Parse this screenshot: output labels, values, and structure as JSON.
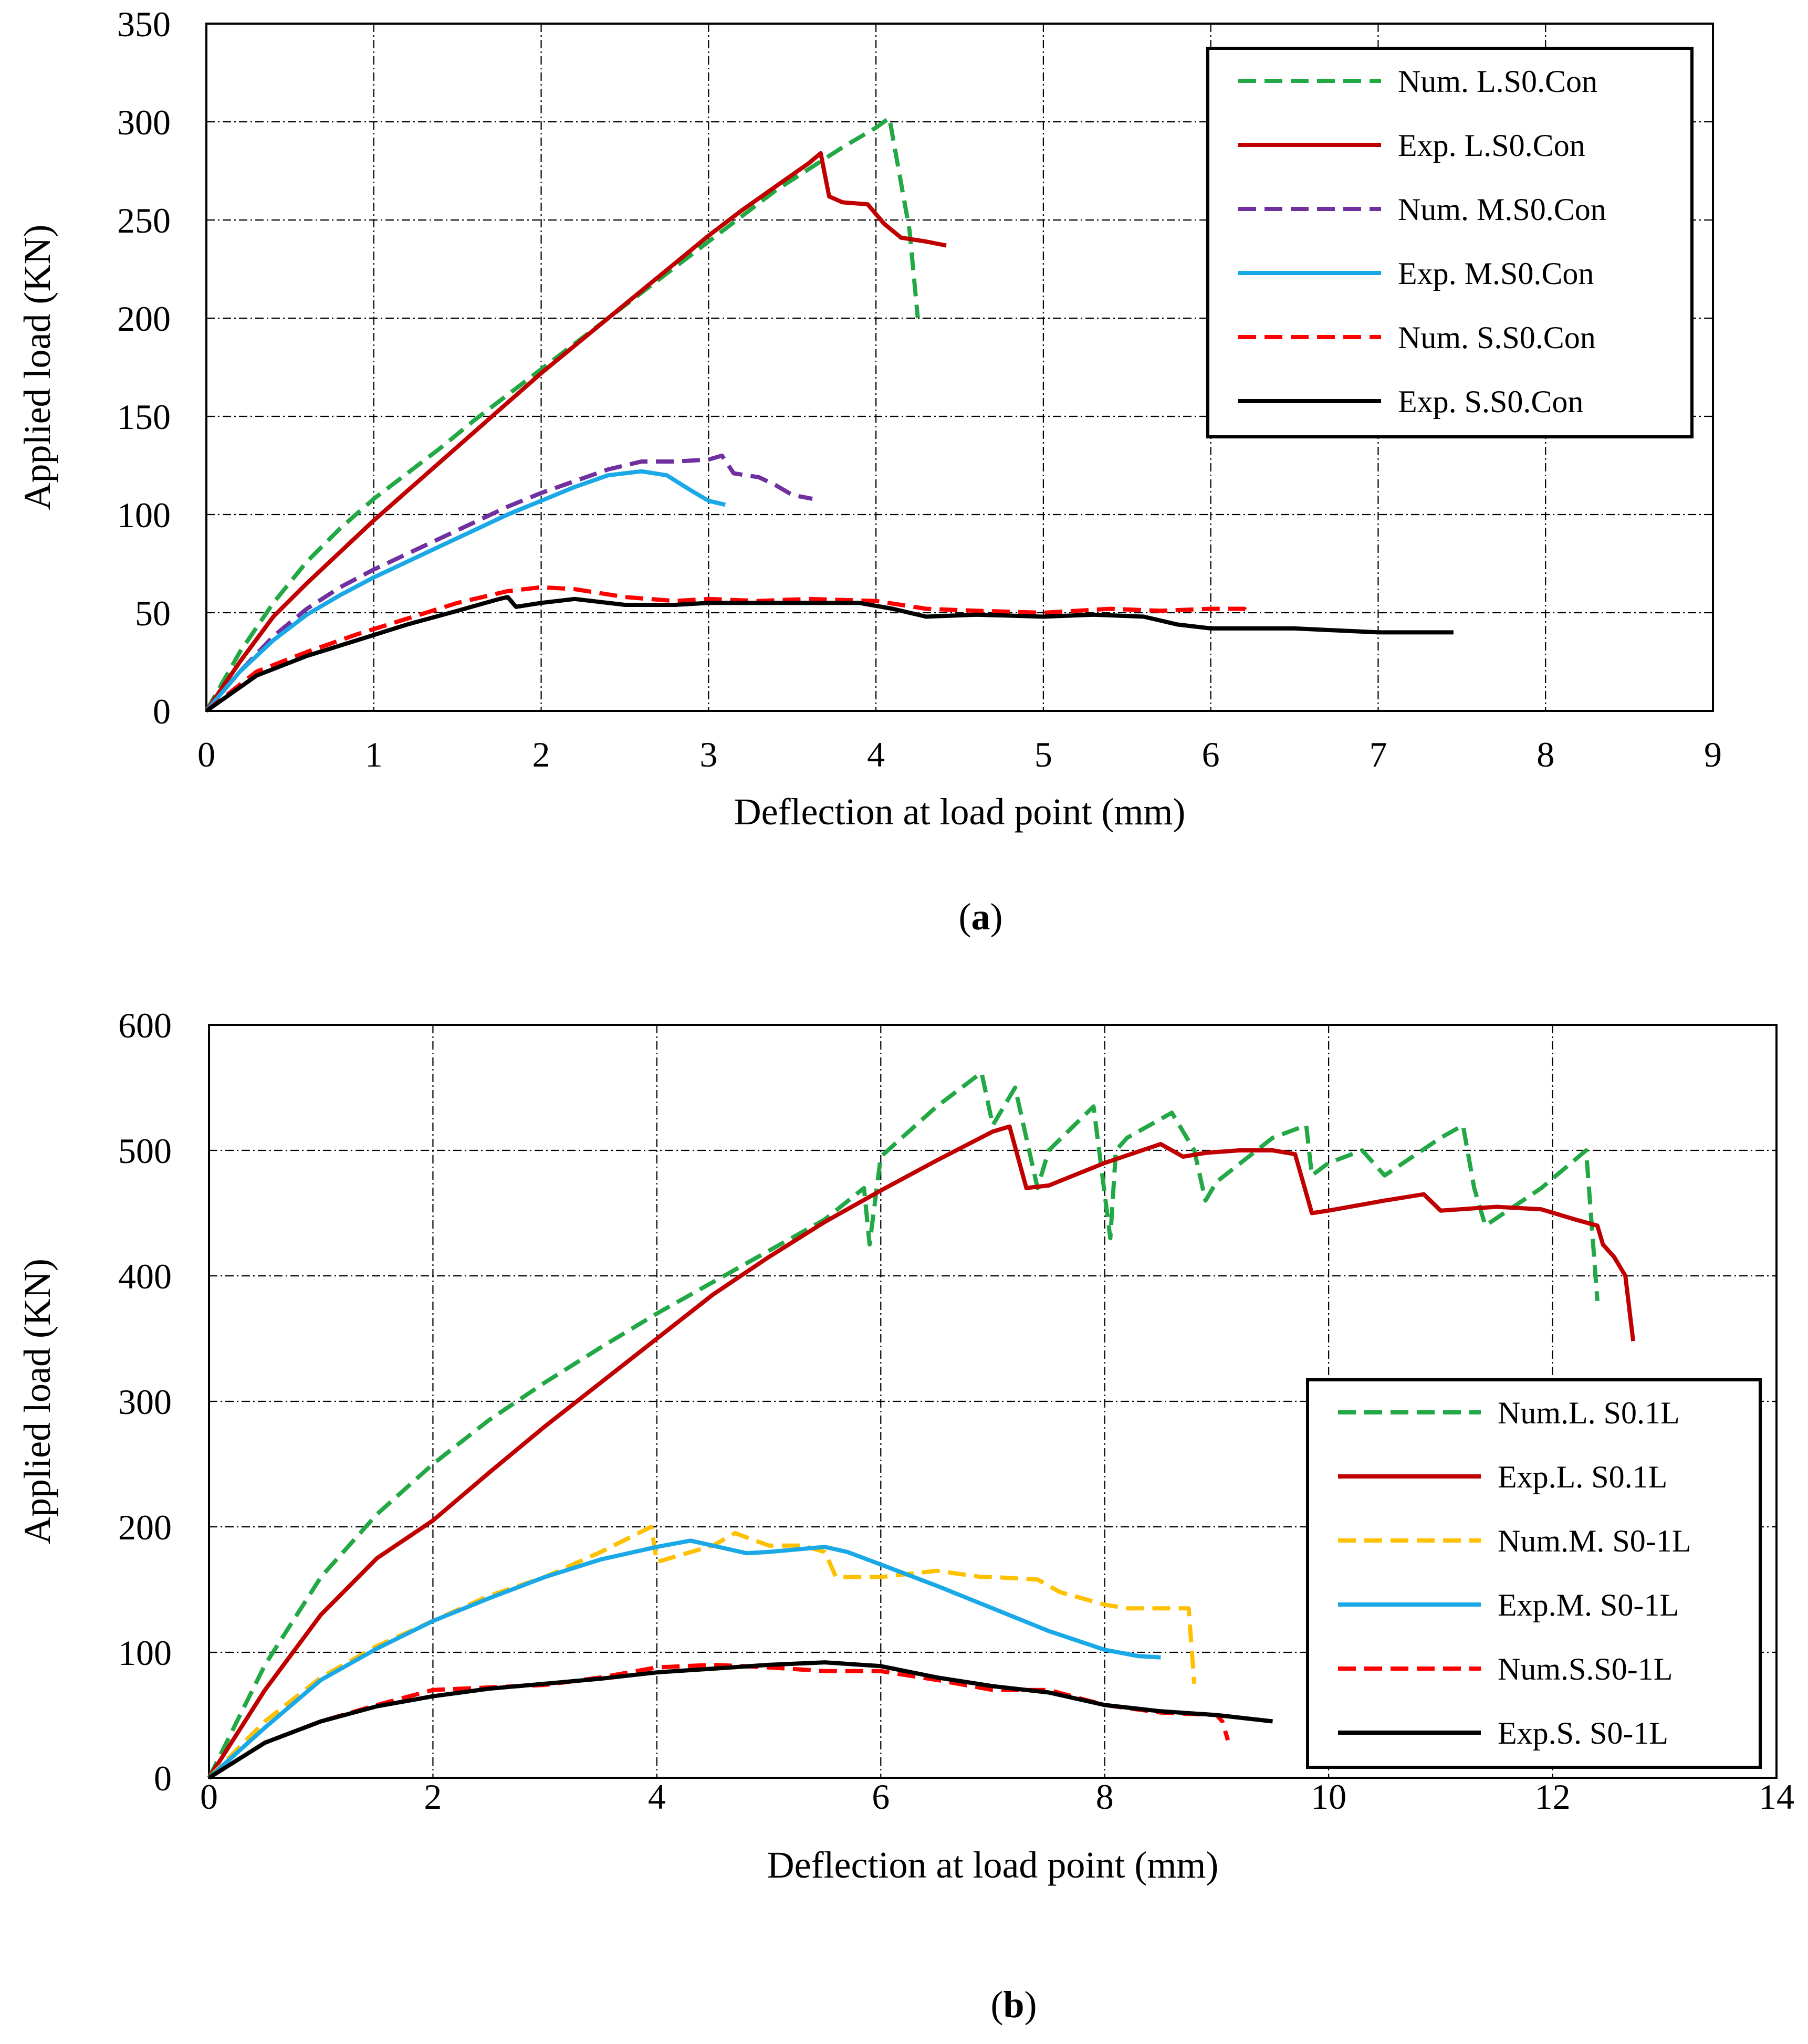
{
  "chart_data": [
    {
      "type": "line",
      "id": "a",
      "caption": "a",
      "xlabel": "Deflection at load point (mm)",
      "ylabel": "Applied load (KN)",
      "xlim": [
        0,
        9
      ],
      "ylim": [
        0,
        350
      ],
      "xticks": [
        0,
        1,
        2,
        3,
        4,
        5,
        6,
        7,
        8,
        9
      ],
      "yticks": [
        0,
        50,
        100,
        150,
        200,
        250,
        300,
        350
      ],
      "grid": true,
      "legend_position": "top-right",
      "series": [
        {
          "name": "Num. L.S0.Con",
          "color": "#22a845",
          "dash": true,
          "x": [
            0,
            0.2,
            0.4,
            0.6,
            0.8,
            1.0,
            1.2,
            1.4,
            1.6,
            1.8,
            2.0,
            2.2,
            2.4,
            2.6,
            2.8,
            3.0,
            3.2,
            3.4,
            3.6,
            3.8,
            4.0,
            4.08,
            4.2,
            4.25
          ],
          "y": [
            0,
            30,
            55,
            76,
            93,
            108,
            121,
            134,
            148,
            161,
            174,
            187,
            200,
            213,
            226,
            239,
            252,
            265,
            276,
            287,
            297,
            302,
            245,
            200
          ]
        },
        {
          "name": "Exp. L.S0.Con",
          "color": "#c00000",
          "dash": false,
          "x": [
            0,
            0.2,
            0.4,
            0.6,
            0.8,
            1.0,
            1.2,
            1.4,
            1.6,
            1.8,
            2.0,
            2.2,
            2.4,
            2.6,
            2.8,
            3.0,
            3.2,
            3.4,
            3.6,
            3.67,
            3.72,
            3.8,
            3.95,
            4.05,
            4.15,
            4.3,
            4.42
          ],
          "y": [
            0,
            25,
            48,
            65,
            81,
            97,
            112,
            127,
            142,
            157,
            172,
            186,
            200,
            214,
            228,
            242,
            255,
            267,
            279,
            284,
            262,
            259,
            258,
            248,
            241,
            239,
            237
          ]
        },
        {
          "name": "Num. M.S0.Con",
          "color": "#7030a0",
          "dash": true,
          "x": [
            0,
            0.2,
            0.4,
            0.6,
            0.8,
            1.0,
            1.2,
            1.4,
            1.6,
            1.8,
            2.0,
            2.2,
            2.4,
            2.6,
            2.8,
            3.0,
            3.08,
            3.15,
            3.3,
            3.4,
            3.5,
            3.62
          ],
          "y": [
            0,
            20,
            38,
            52,
            63,
            72,
            80,
            88,
            96,
            104,
            111,
            117,
            123,
            127,
            127,
            128,
            130,
            121,
            119,
            115,
            110,
            108
          ]
        },
        {
          "name": "Exp. M.S0.Con",
          "color": "#1aa9e6",
          "dash": false,
          "x": [
            0,
            0.2,
            0.4,
            0.6,
            0.8,
            1.0,
            1.2,
            1.4,
            1.6,
            1.8,
            2.0,
            2.2,
            2.4,
            2.6,
            2.75,
            2.9,
            3.0,
            3.1
          ],
          "y": [
            0,
            20,
            36,
            49,
            59,
            68,
            76,
            84,
            92,
            100,
            107,
            114,
            120,
            122,
            120,
            112,
            107,
            105
          ]
        },
        {
          "name": "Num. S.S0.Con",
          "color": "#ff0000",
          "dash": true,
          "x": [
            0,
            0.3,
            0.6,
            0.9,
            1.2,
            1.5,
            1.8,
            2.0,
            2.2,
            2.5,
            2.8,
            3.0,
            3.3,
            3.6,
            4.0,
            4.3,
            4.6,
            5.0,
            5.4,
            5.7,
            6.0,
            6.2,
            6.25
          ],
          "y": [
            0,
            20,
            30,
            39,
            47,
            55,
            61,
            63,
            62,
            58,
            56,
            57,
            56,
            57,
            56,
            52,
            51,
            50,
            52,
            51,
            52,
            52,
            49
          ]
        },
        {
          "name": "Exp. S.S0.Con",
          "color": "#000000",
          "dash": false,
          "x": [
            0,
            0.3,
            0.6,
            0.9,
            1.2,
            1.5,
            1.75,
            1.8,
            1.85,
            2.0,
            2.2,
            2.5,
            2.8,
            3.0,
            3.3,
            3.6,
            3.9,
            4.1,
            4.3,
            4.6,
            5.0,
            5.3,
            5.6,
            5.8,
            6.0,
            6.5,
            7.0,
            7.45
          ],
          "y": [
            0,
            18,
            28,
            36,
            44,
            51,
            57,
            58,
            53,
            55,
            57,
            54,
            54,
            55,
            55,
            55,
            55,
            52,
            48,
            49,
            48,
            49,
            48,
            44,
            42,
            42,
            40,
            40
          ]
        }
      ]
    },
    {
      "type": "line",
      "id": "b",
      "caption": "b",
      "xlabel": "Deflection at load point (mm)",
      "ylabel": "Applied load (KN)",
      "xlim": [
        0,
        14
      ],
      "ylim": [
        0,
        600
      ],
      "xticks": [
        0,
        2,
        4,
        6,
        8,
        10,
        12,
        14
      ],
      "yticks": [
        0,
        100,
        200,
        300,
        400,
        500,
        600
      ],
      "grid": true,
      "legend_position": "bottom-right",
      "series": [
        {
          "name": "Num.L. S0.1L",
          "color": "#22a845",
          "dash": true,
          "x": [
            0,
            0.5,
            1.0,
            1.5,
            2.0,
            2.5,
            3.0,
            3.5,
            4.0,
            4.5,
            5.0,
            5.5,
            5.85,
            5.9,
            5.95,
            6.0,
            6.5,
            6.9,
            7.0,
            7.2,
            7.35,
            7.4,
            7.5,
            7.9,
            8.05,
            8.1,
            8.2,
            8.6,
            8.8,
            8.9,
            9.0,
            9.5,
            9.8,
            9.85,
            10.0,
            10.3,
            10.5,
            11.0,
            11.2,
            11.3,
            11.4,
            11.9,
            12.3,
            12.4
          ],
          "y": [
            0,
            90,
            160,
            210,
            250,
            285,
            315,
            343,
            370,
            395,
            420,
            445,
            470,
            425,
            460,
            495,
            535,
            562,
            520,
            550,
            490,
            470,
            500,
            535,
            430,
            500,
            510,
            530,
            500,
            460,
            475,
            510,
            520,
            480,
            490,
            500,
            480,
            510,
            520,
            470,
            440,
            470,
            500,
            380
          ]
        },
        {
          "name": "Exp.L. S0.1L",
          "color": "#c00000",
          "dash": false,
          "x": [
            0,
            0.5,
            1.0,
            1.5,
            2.0,
            2.5,
            3.0,
            3.5,
            4.0,
            4.5,
            5.0,
            5.5,
            6.0,
            6.5,
            7.0,
            7.15,
            7.3,
            7.5,
            8.0,
            8.5,
            8.7,
            8.9,
            9.2,
            9.5,
            9.7,
            9.85,
            10.0,
            10.5,
            10.85,
            11.0,
            11.5,
            11.9,
            12.2,
            12.4,
            12.45,
            12.55,
            12.65,
            12.72
          ],
          "y": [
            0,
            70,
            130,
            175,
            205,
            243,
            280,
            315,
            350,
            385,
            415,
            443,
            468,
            492,
            515,
            519,
            470,
            472,
            490,
            505,
            495,
            498,
            500,
            500,
            497,
            450,
            452,
            460,
            465,
            452,
            455,
            453,
            445,
            440,
            425,
            415,
            400,
            348
          ]
        },
        {
          "name": "Num.M. S0-1L",
          "color": "#ffc000",
          "dash": true,
          "x": [
            0,
            0.5,
            1.0,
            1.5,
            2.0,
            2.5,
            3.0,
            3.5,
            3.95,
            4.0,
            4.5,
            4.7,
            5.0,
            5.3,
            5.5,
            5.6,
            6.0,
            6.5,
            6.9,
            7.0,
            7.4,
            7.6,
            8.0,
            8.2,
            8.5,
            8.75,
            8.8
          ],
          "y": [
            0,
            45,
            80,
            105,
            125,
            145,
            160,
            180,
            200,
            172,
            185,
            195,
            185,
            185,
            180,
            160,
            160,
            165,
            160,
            160,
            158,
            148,
            138,
            135,
            135,
            135,
            75
          ]
        },
        {
          "name": "Exp.M. S0-1L",
          "color": "#1aa9e6",
          "dash": false,
          "x": [
            0,
            0.5,
            1.0,
            1.5,
            2.0,
            2.5,
            3.0,
            3.5,
            4.0,
            4.3,
            4.5,
            4.8,
            5.0,
            5.5,
            5.7,
            6.0,
            6.5,
            7.0,
            7.5,
            8.0,
            8.3,
            8.5
          ],
          "y": [
            0,
            40,
            78,
            103,
            125,
            143,
            160,
            174,
            184,
            189,
            185,
            179,
            180,
            184,
            180,
            170,
            153,
            135,
            117,
            102,
            97,
            96
          ]
        },
        {
          "name": "Num.S.S0-1L",
          "color": "#ff0000",
          "dash": true,
          "x": [
            0,
            0.5,
            1.0,
            1.5,
            2.0,
            2.5,
            3.0,
            3.5,
            4.0,
            4.5,
            5.0,
            5.5,
            6.0,
            6.5,
            7.0,
            7.5,
            8.0,
            8.5,
            9.0,
            9.05,
            9.1
          ],
          "y": [
            0,
            28,
            45,
            58,
            70,
            72,
            74,
            80,
            88,
            90,
            88,
            85,
            85,
            78,
            70,
            70,
            58,
            52,
            50,
            45,
            30
          ]
        },
        {
          "name": "Exp.S. S0-1L",
          "color": "#000000",
          "dash": false,
          "x": [
            0,
            0.5,
            1.0,
            1.5,
            2.0,
            2.5,
            3.0,
            3.5,
            4.0,
            4.5,
            5.0,
            5.5,
            6.0,
            6.5,
            7.0,
            7.5,
            8.0,
            8.5,
            9.0,
            9.5
          ],
          "y": [
            0,
            28,
            45,
            57,
            65,
            71,
            75,
            79,
            84,
            87,
            90,
            92,
            89,
            80,
            73,
            68,
            58,
            53,
            50,
            45
          ]
        }
      ]
    }
  ]
}
